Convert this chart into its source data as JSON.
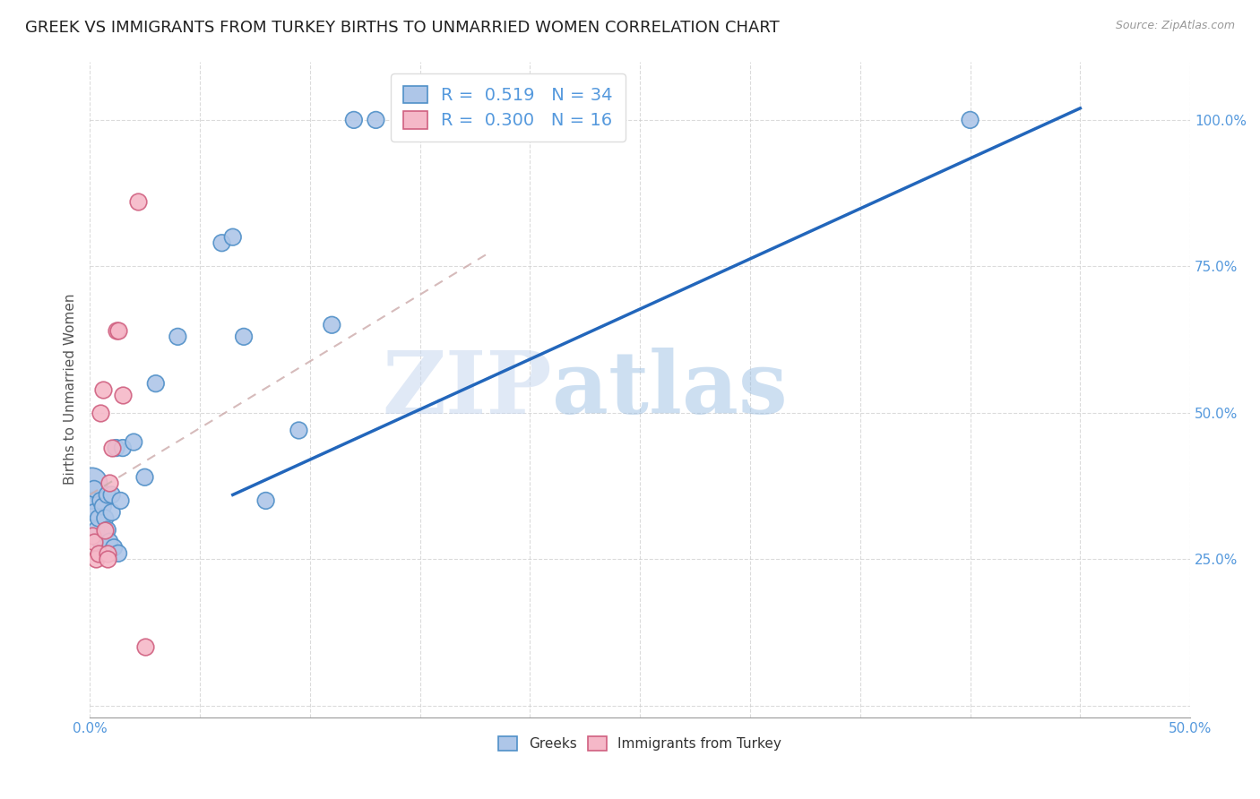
{
  "title": "GREEK VS IMMIGRANTS FROM TURKEY BIRTHS TO UNMARRIED WOMEN CORRELATION CHART",
  "source": "Source: ZipAtlas.com",
  "ylabel": "Births to Unmarried Women",
  "xlim": [
    0.0,
    0.5
  ],
  "ylim": [
    -0.02,
    1.1
  ],
  "xticks": [
    0.0,
    0.05,
    0.1,
    0.15,
    0.2,
    0.25,
    0.3,
    0.35,
    0.4,
    0.45,
    0.5
  ],
  "yticks": [
    0.0,
    0.25,
    0.5,
    0.75,
    1.0
  ],
  "ytick_labels_right": [
    "",
    "25.0%",
    "50.0%",
    "75.0%",
    "100.0%"
  ],
  "xtick_labels": [
    "0.0%",
    "",
    "",
    "",
    "",
    "",
    "",
    "",
    "",
    "",
    "50.0%"
  ],
  "greek_R": 0.519,
  "greek_N": 34,
  "immigrant_R": 0.3,
  "immigrant_N": 16,
  "greek_color": "#aec6e8",
  "greek_edge_color": "#5090c8",
  "immigrant_color": "#f5b8c8",
  "immigrant_edge_color": "#d06080",
  "watermark_zip": "ZIP",
  "watermark_atlas": "atlas",
  "background_color": "#ffffff",
  "grid_color": "#cccccc",
  "title_fontsize": 13,
  "label_fontsize": 11,
  "tick_fontsize": 11,
  "legend_fontsize": 14,
  "right_tick_color": "#5599dd",
  "label_color": "#555555",
  "greek_line_color": "#2266bb",
  "immigrant_line_color": "#cc4466",
  "greek_scatter_x": [
    0.001,
    0.001,
    0.002,
    0.002,
    0.003,
    0.004,
    0.005,
    0.005,
    0.006,
    0.007,
    0.008,
    0.008,
    0.009,
    0.01,
    0.01,
    0.011,
    0.012,
    0.013,
    0.014,
    0.015,
    0.02,
    0.025,
    0.03,
    0.04,
    0.06,
    0.065,
    0.07,
    0.08,
    0.095,
    0.11,
    0.12,
    0.13,
    0.15,
    0.4
  ],
  "greek_scatter_y": [
    0.38,
    0.35,
    0.37,
    0.33,
    0.3,
    0.32,
    0.35,
    0.28,
    0.34,
    0.32,
    0.36,
    0.3,
    0.28,
    0.36,
    0.33,
    0.27,
    0.44,
    0.26,
    0.35,
    0.44,
    0.45,
    0.39,
    0.55,
    0.63,
    0.79,
    0.8,
    0.63,
    0.35,
    0.47,
    0.65,
    1.0,
    1.0,
    1.0,
    1.0
  ],
  "greek_scatter_large": [
    0
  ],
  "immigrant_scatter_x": [
    0.001,
    0.002,
    0.003,
    0.004,
    0.005,
    0.006,
    0.007,
    0.008,
    0.008,
    0.009,
    0.01,
    0.012,
    0.013,
    0.015,
    0.022,
    0.025
  ],
  "immigrant_scatter_y": [
    0.29,
    0.28,
    0.25,
    0.26,
    0.5,
    0.54,
    0.3,
    0.26,
    0.25,
    0.38,
    0.44,
    0.64,
    0.64,
    0.53,
    0.86,
    0.1
  ],
  "greek_line_x1": 0.065,
  "greek_line_y1": 0.36,
  "greek_line_x2": 0.45,
  "greek_line_y2": 1.02,
  "immigrant_line_x1": 0.0,
  "immigrant_line_y1": 0.36,
  "immigrant_line_x2": 0.18,
  "immigrant_line_y2": 0.77
}
